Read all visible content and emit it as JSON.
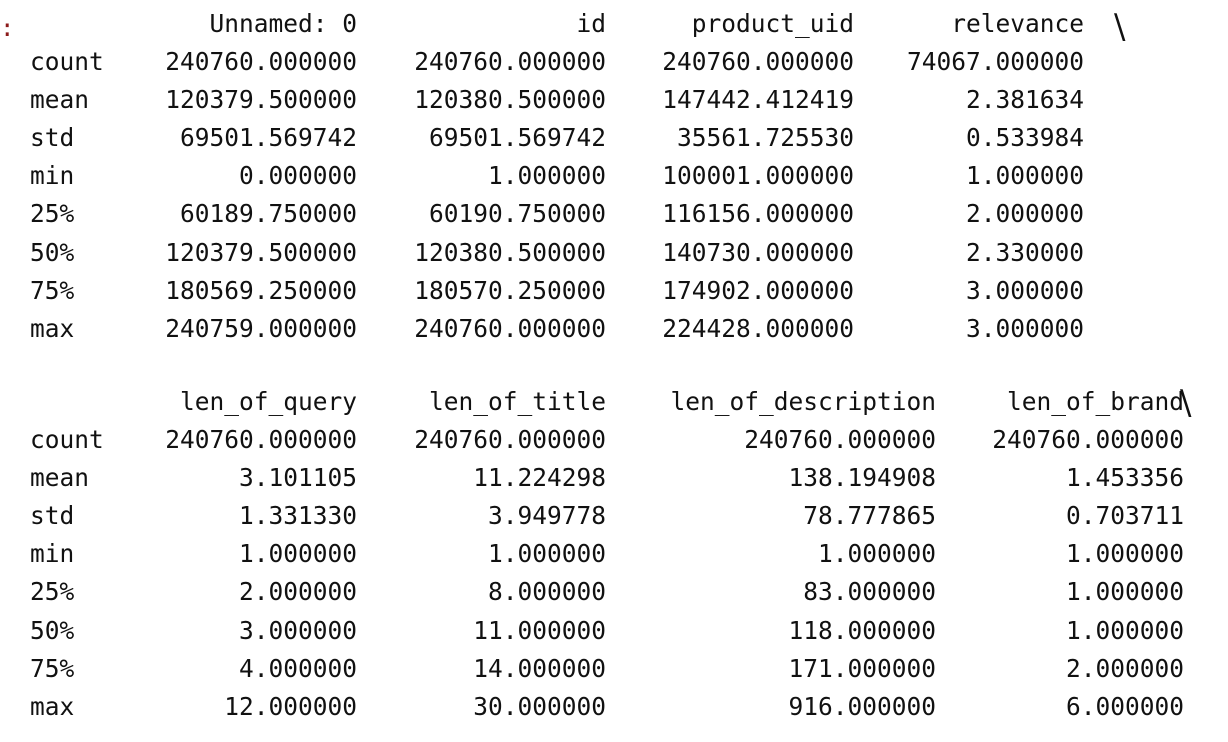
{
  "prompt_marker": ":",
  "continuation_marker": "\\",
  "tables": [
    {
      "columns": [
        "Unnamed: 0",
        "id",
        "product_uid",
        "relevance"
      ],
      "rows": [
        {
          "label": "count",
          "values": [
            "240760.000000",
            "240760.000000",
            "240760.000000",
            "74067.000000"
          ]
        },
        {
          "label": "mean",
          "values": [
            "120379.500000",
            "120380.500000",
            "147442.412419",
            "2.381634"
          ]
        },
        {
          "label": "std",
          "values": [
            "69501.569742",
            "69501.569742",
            "35561.725530",
            "0.533984"
          ]
        },
        {
          "label": "min",
          "values": [
            "0.000000",
            "1.000000",
            "100001.000000",
            "1.000000"
          ]
        },
        {
          "label": "25%",
          "values": [
            "60189.750000",
            "60190.750000",
            "116156.000000",
            "2.000000"
          ]
        },
        {
          "label": "50%",
          "values": [
            "120379.500000",
            "120380.500000",
            "140730.000000",
            "2.330000"
          ]
        },
        {
          "label": "75%",
          "values": [
            "180569.250000",
            "180570.250000",
            "174902.000000",
            "3.000000"
          ]
        },
        {
          "label": "max",
          "values": [
            "240759.000000",
            "240760.000000",
            "224428.000000",
            "3.000000"
          ]
        }
      ]
    },
    {
      "columns": [
        "len_of_query",
        "len_of_title",
        "len_of_description",
        "len_of_brand"
      ],
      "rows": [
        {
          "label": "count",
          "values": [
            "240760.000000",
            "240760.000000",
            "240760.000000",
            "240760.000000"
          ]
        },
        {
          "label": "mean",
          "values": [
            "3.101105",
            "11.224298",
            "138.194908",
            "1.453356"
          ]
        },
        {
          "label": "std",
          "values": [
            "1.331330",
            "3.949778",
            "78.777865",
            "0.703711"
          ]
        },
        {
          "label": "min",
          "values": [
            "1.000000",
            "1.000000",
            "1.000000",
            "1.000000"
          ]
        },
        {
          "label": "25%",
          "values": [
            "2.000000",
            "8.000000",
            "83.000000",
            "1.000000"
          ]
        },
        {
          "label": "50%",
          "values": [
            "3.000000",
            "11.000000",
            "118.000000",
            "1.000000"
          ]
        },
        {
          "label": "75%",
          "values": [
            "4.000000",
            "14.000000",
            "171.000000",
            "2.000000"
          ]
        },
        {
          "label": "max",
          "values": [
            "12.000000",
            "30.000000",
            "916.000000",
            "6.000000"
          ]
        }
      ]
    }
  ]
}
